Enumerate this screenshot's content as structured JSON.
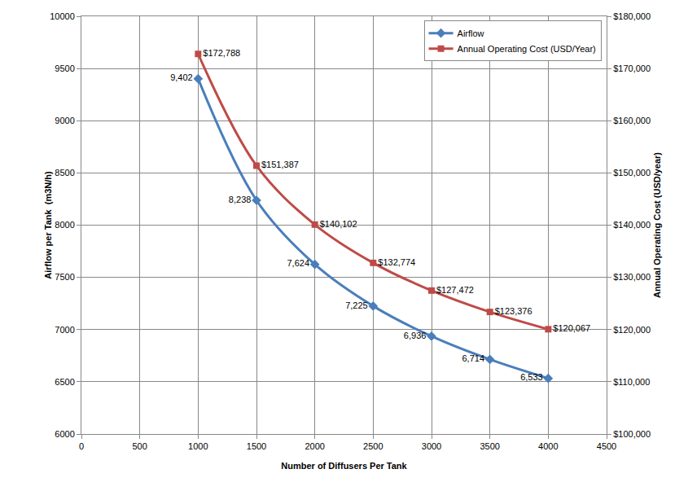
{
  "chart_data": {
    "type": "line",
    "x_label": "Number of Diffusers Per Tank",
    "y_label": "Airflow per Tank  (m3N/h)",
    "y2_label": "Annual Operating Cost (USD/year)",
    "x": [
      1000,
      1500,
      2000,
      2500,
      3000,
      3500,
      4000
    ],
    "series": [
      {
        "name": "Airflow",
        "color": "#4a7ebb",
        "marker": "diamond",
        "line_style": "smooth",
        "values": [
          9402,
          8238,
          7624,
          7225,
          6936,
          6714,
          6533
        ],
        "value_labels": [
          "9,402",
          "8,238",
          "7,624",
          "7,225",
          "6,936",
          "6,714",
          "6,533"
        ]
      },
      {
        "name": "Annual Operating Cost (USD/Year)",
        "color": "#be4b48",
        "marker": "square",
        "line_style": "smooth",
        "axis": "y2",
        "values": [
          172788,
          151387,
          140102,
          132774,
          127472,
          123376,
          120067
        ],
        "value_labels": [
          "$172,788",
          "$151,387",
          "$140,102",
          "$132,774",
          "$127,472",
          "$123,376",
          "$120,067"
        ]
      }
    ],
    "xlim": [
      0,
      4500
    ],
    "xticks": [
      0,
      500,
      1000,
      1500,
      2000,
      2500,
      3000,
      3500,
      4000,
      4500
    ],
    "ylim": [
      6000,
      10000
    ],
    "yticks": [
      6000,
      6500,
      7000,
      7500,
      8000,
      8500,
      9000,
      9500,
      10000
    ],
    "y2lim": [
      100000,
      180000
    ],
    "y2ticks": [
      {
        "value": 100000,
        "label": "$100,000"
      },
      {
        "value": 110000,
        "label": "$110,000"
      },
      {
        "value": 120000,
        "label": "$120,000"
      },
      {
        "value": 130000,
        "label": "$130,000"
      },
      {
        "value": 140000,
        "label": "$140,000"
      },
      {
        "value": 150000,
        "label": "$150,000"
      },
      {
        "value": 160000,
        "label": "$160,000"
      },
      {
        "value": 170000,
        "label": "$170,000"
      },
      {
        "value": 180000,
        "label": "$180,000"
      }
    ],
    "grid": true,
    "legend": "top right",
    "data_labels": true
  }
}
